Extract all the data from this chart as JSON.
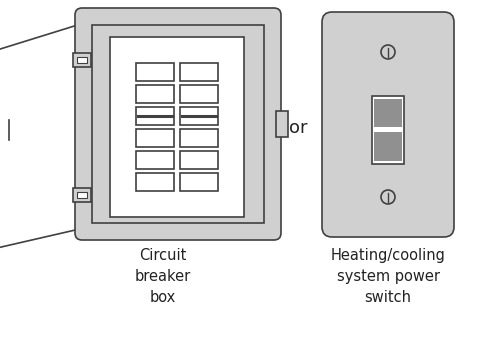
{
  "bg_color": "#ffffff",
  "light_gray": "#d0d0d0",
  "mid_gray": "#a8a8a8",
  "dark_gray": "#909090",
  "outline_color": "#404040",
  "white": "#ffffff",
  "text_color": "#222222",
  "label1": "Circuit\nbreaker\nbox",
  "label2": "Heating/cooling\nsystem power\nswitch",
  "or_text": "or",
  "font_size": 10.5
}
